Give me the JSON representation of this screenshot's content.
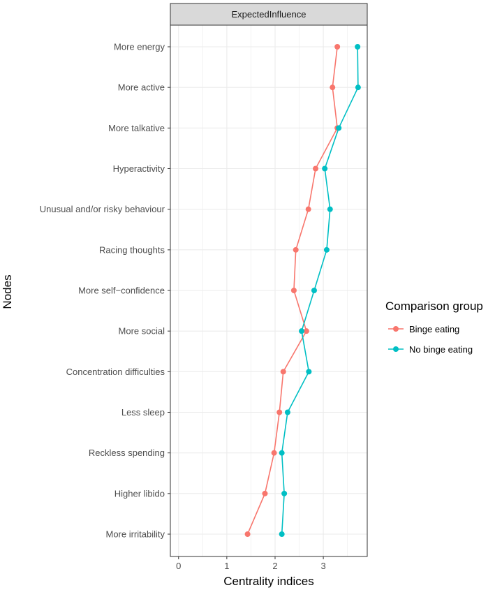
{
  "chart_data": {
    "type": "line",
    "facet_title": "ExpectedInfluence",
    "xlabel": "Centrality indices",
    "ylabel": "Nodes",
    "xlim": [
      -0.17,
      3.91
    ],
    "xticks": [
      0,
      1,
      2,
      3
    ],
    "grid": true,
    "categories": [
      "More energy",
      "More active",
      "More talkative",
      "Hyperactivity",
      "Unusual and/or risky behaviour",
      "Racing thoughts",
      "More self−confidence",
      "More social",
      "Concentration difficulties",
      "Less sleep",
      "Reckless spending",
      "Higher libido",
      "More irritability"
    ],
    "legend": {
      "title": "Comparison group",
      "placement": "right"
    },
    "series": [
      {
        "name": "Binge eating",
        "color": "#F8766D",
        "values": [
          3.29,
          3.19,
          3.29,
          2.84,
          2.69,
          2.43,
          2.39,
          2.65,
          2.17,
          2.09,
          1.98,
          1.79,
          1.43
        ]
      },
      {
        "name": "No binge eating",
        "color": "#00BFC4",
        "values": [
          3.71,
          3.72,
          3.32,
          3.03,
          3.14,
          3.07,
          2.81,
          2.55,
          2.7,
          2.26,
          2.14,
          2.19,
          2.14
        ]
      }
    ]
  }
}
